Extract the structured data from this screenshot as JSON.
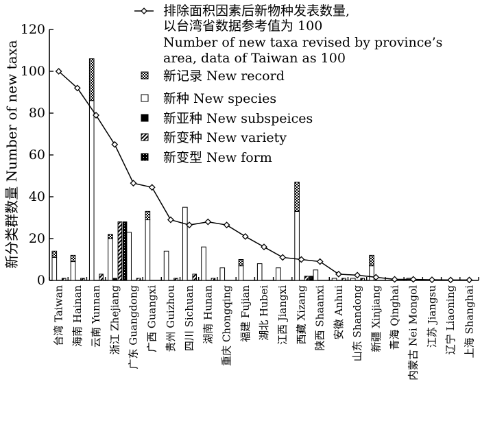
{
  "chart_data": {
    "type": "bar",
    "ylabel": "新分类群数量 Number of new taxa",
    "xlabel": "",
    "ylim": [
      0,
      120
    ],
    "yticks": [
      0,
      20,
      40,
      60,
      80,
      100,
      120
    ],
    "categories": [
      "台湾 Taiwan",
      "海南 Hainan",
      "云南 Yunnan",
      "浙江 Zhejiang",
      "广东 Guangdong",
      "广西 Guangxi",
      "贵州 Guizhou",
      "四川 Sichuan",
      "湖南 Hunan",
      "重庆 Chongqing",
      "福建 Fujian",
      "湖北 Hubei",
      "江西 Jiangxi",
      "西藏 Xizang",
      "陕西 Shaanxi",
      "安徽 Anhui",
      "山东 Shandong",
      "新疆 Xinjiang",
      "青海 Qinghai",
      "内蒙古 Nei Mongol",
      "江苏 Jiangsu",
      "辽宁 Liaoning",
      "上海 Shanghai"
    ],
    "series": [
      {
        "name": "新记录 New record",
        "pattern": "checker",
        "values": [
          3,
          3,
          20,
          2,
          0,
          4,
          0,
          0,
          0,
          0,
          3,
          0,
          0,
          14,
          0,
          0,
          0,
          5,
          0,
          0,
          0,
          0,
          0
        ]
      },
      {
        "name": "新种 New species",
        "pattern": "white",
        "values": [
          11,
          9,
          86,
          20,
          23,
          29,
          14,
          35,
          16,
          6,
          7,
          8,
          6,
          33,
          5,
          1,
          1,
          7,
          0,
          1,
          0,
          0,
          0
        ]
      },
      {
        "name": "新亚种 New subspeices",
        "pattern": "black",
        "values": [
          0,
          0,
          0,
          1,
          0,
          0,
          0,
          0,
          0,
          0,
          0,
          0,
          0,
          0,
          0,
          0,
          0,
          0,
          0,
          0,
          0,
          0,
          0
        ]
      },
      {
        "name": "新变种 New variety",
        "pattern": "hatch",
        "values": [
          1,
          1,
          3,
          28,
          1,
          0,
          1,
          3,
          1,
          0,
          0,
          0,
          0,
          2,
          0,
          1,
          1,
          0,
          0,
          0,
          0,
          0,
          0
        ]
      },
      {
        "name": "新变型 New form",
        "pattern": "dotblack",
        "values": [
          0,
          0,
          0,
          28,
          0,
          0,
          0,
          0,
          0,
          0,
          0,
          0,
          0,
          2,
          0,
          0,
          0,
          0,
          0,
          0,
          0,
          0,
          0
        ]
      }
    ],
    "line_series": {
      "name": "排除面积因素后新物种发表数量, 以台湾省数据参考值为 100 Number of new taxa revised by province's area, data of Taiwan as 100",
      "values": [
        100,
        92,
        79,
        65,
        46.5,
        44.5,
        29,
        26.5,
        28,
        26.5,
        21,
        16,
        11,
        10,
        9,
        3,
        2.5,
        1.5,
        0.5,
        0.5,
        0.3,
        0.2,
        0.2
      ]
    },
    "legend": {
      "placement": "top-right",
      "line_label": [
        "排除面积因素后新物种发表数量,",
        "以台湾省数据参考值为 100",
        "Number of new taxa revised by province’s",
        "area, data of Taiwan as 100"
      ],
      "bar_labels": [
        "新记录 New record",
        "新种 New species",
        "新亚种 New subspeices",
        "新变种 New variety",
        "新变型 New form"
      ]
    },
    "grid": false
  }
}
